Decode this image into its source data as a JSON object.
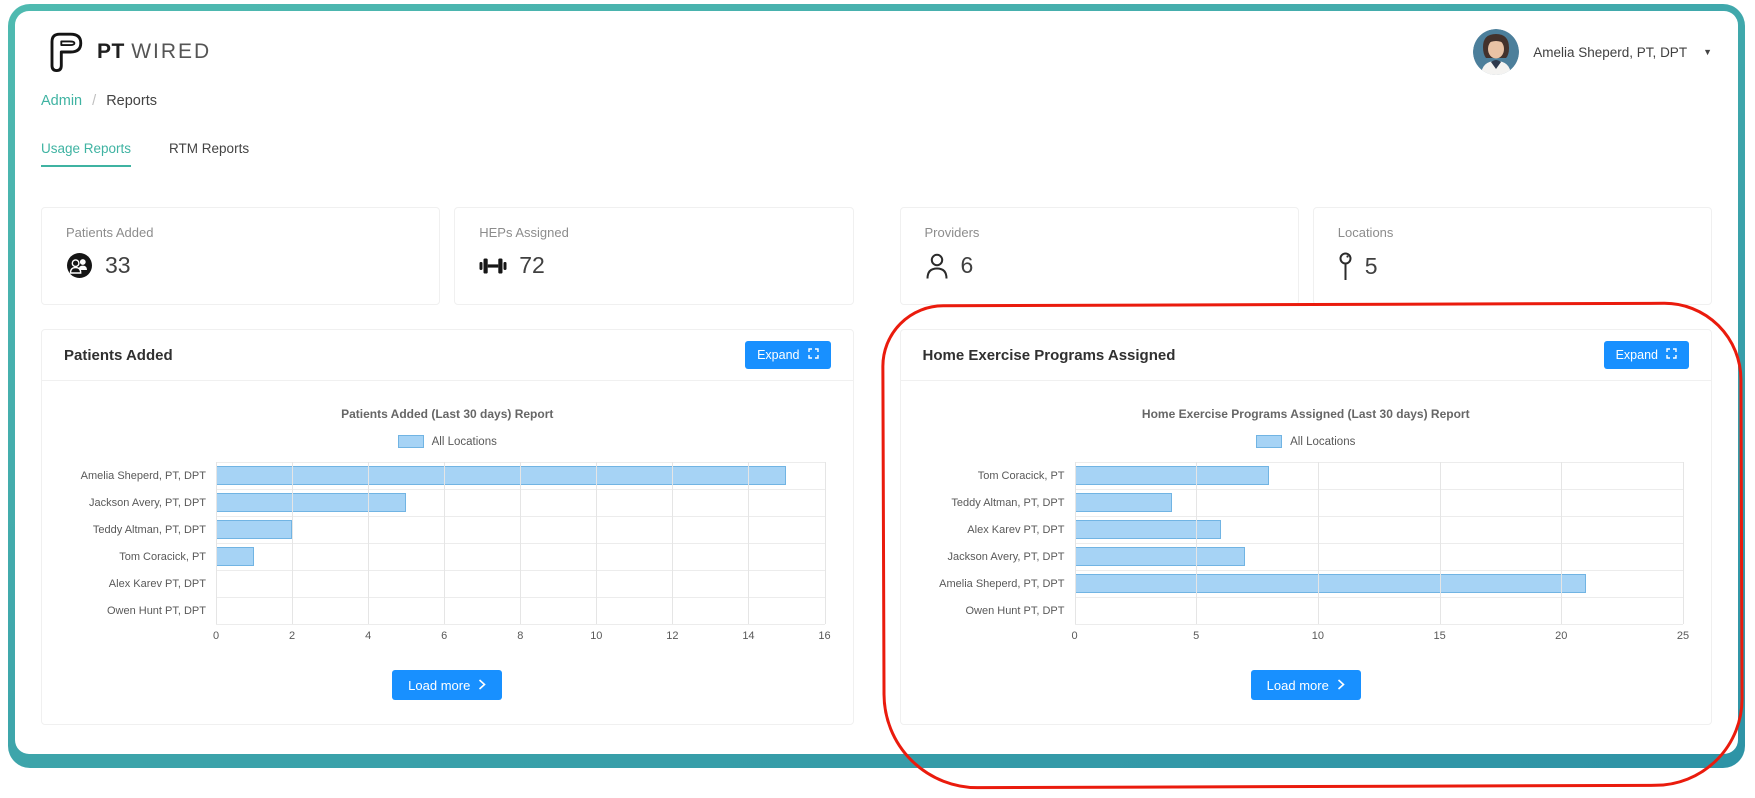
{
  "brand": {
    "bold": "PT",
    "light": "WIRED"
  },
  "user": {
    "display_name": "Amelia Sheperd, PT, DPT"
  },
  "breadcrumb": {
    "section": "Admin",
    "separator": "/",
    "page": "Reports"
  },
  "tabs": [
    {
      "label": "Usage Reports",
      "active": true
    },
    {
      "label": "RTM Reports",
      "active": false
    }
  ],
  "stats": [
    {
      "label": "Patients Added",
      "value": "33",
      "icon": "patients-icon"
    },
    {
      "label": "HEPs Assigned",
      "value": "72",
      "icon": "dumbbell-icon"
    },
    {
      "label": "Providers",
      "value": "6",
      "icon": "provider-icon"
    },
    {
      "label": "Locations",
      "value": "5",
      "icon": "location-pin-icon"
    }
  ],
  "buttons": {
    "expand": "Expand",
    "load_more": "Load more"
  },
  "chart_data": [
    {
      "type": "bar",
      "orientation": "horizontal",
      "panel_title": "Patients Added",
      "title": "Patients Added (Last 30 days) Report",
      "legend": [
        "All Locations"
      ],
      "legend_position": "top",
      "grid": true,
      "categories": [
        "Amelia Sheperd, PT, DPT",
        "Jackson Avery, PT, DPT",
        "Teddy Altman, PT, DPT",
        "Tom Coracick, PT",
        "Alex Karev PT, DPT",
        "Owen Hunt PT, DPT"
      ],
      "values": [
        15,
        5,
        2,
        1,
        0,
        0
      ],
      "xlim": [
        0,
        16
      ],
      "xticks": [
        0,
        2,
        4,
        6,
        8,
        10,
        12,
        14,
        16
      ],
      "bar_color": "#a6d3f5",
      "bar_border": "#71b4e3"
    },
    {
      "type": "bar",
      "orientation": "horizontal",
      "panel_title": "Home Exercise Programs Assigned",
      "title": "Home Exercise Programs Assigned (Last 30 days) Report",
      "legend": [
        "All Locations"
      ],
      "legend_position": "top",
      "grid": true,
      "categories": [
        "Tom Coracick, PT",
        "Teddy Altman, PT, DPT",
        "Alex Karev PT, DPT",
        "Jackson Avery, PT, DPT",
        "Amelia Sheperd, PT, DPT",
        "Owen Hunt PT, DPT"
      ],
      "values": [
        8,
        4,
        6,
        7,
        21,
        0
      ],
      "xlim": [
        0,
        25
      ],
      "xticks": [
        0,
        5,
        10,
        15,
        20,
        25
      ],
      "bar_color": "#a6d3f5",
      "bar_border": "#71b4e3"
    }
  ],
  "annotation": {
    "type": "hand-drawn red circle",
    "color": "#ea1b0d",
    "highlights": "Home Exercise Programs Assigned panel"
  },
  "theme": {
    "accent_teal": "#3fb3a2",
    "frame_teal": "#3598a8",
    "primary_blue": "#1890ff"
  }
}
